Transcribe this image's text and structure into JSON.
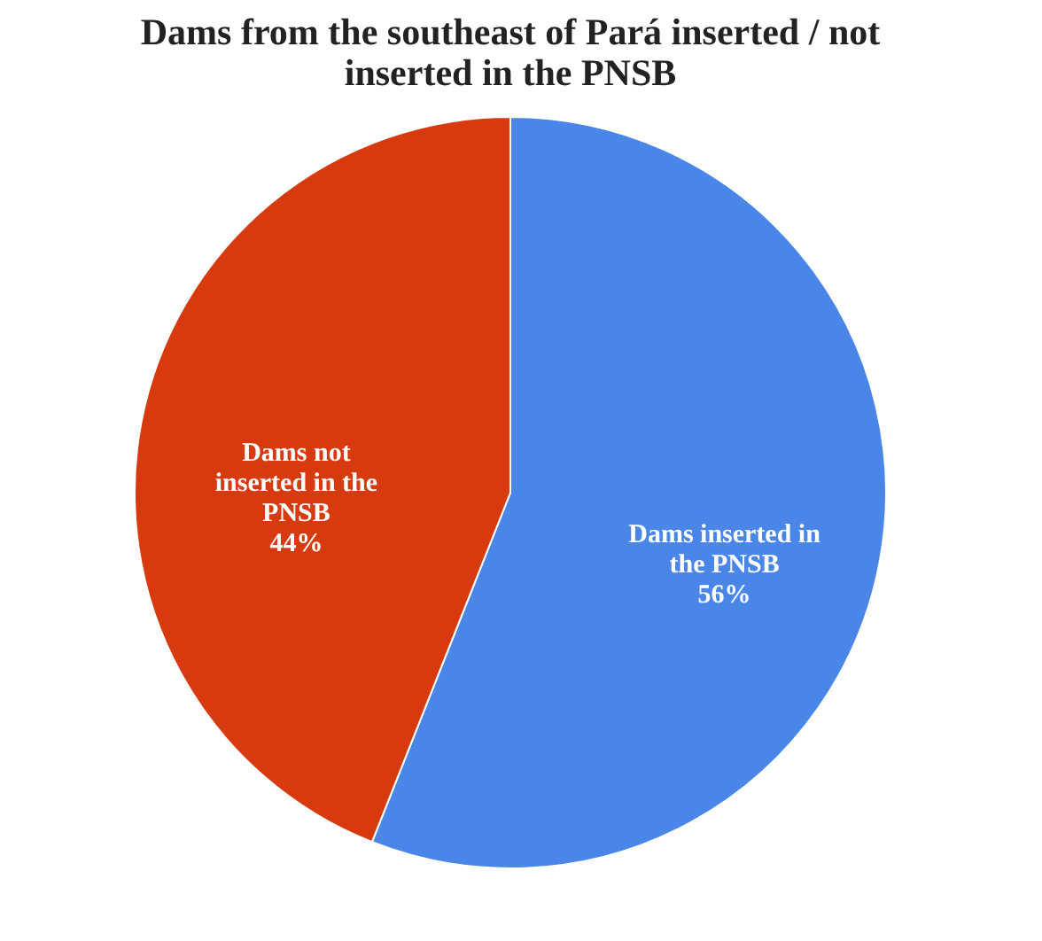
{
  "chart_data": {
    "type": "pie",
    "title": "Dams from the southeast of Pará inserted / not inserted in the PNSB",
    "categories": [
      "Dams inserted in the PNSB",
      "Dams not inserted in the PNSB"
    ],
    "values": [
      56,
      44
    ],
    "colors": [
      "#4a86e8",
      "#d83a10"
    ],
    "value_labels": [
      "56%",
      "44%"
    ],
    "legend": false
  }
}
